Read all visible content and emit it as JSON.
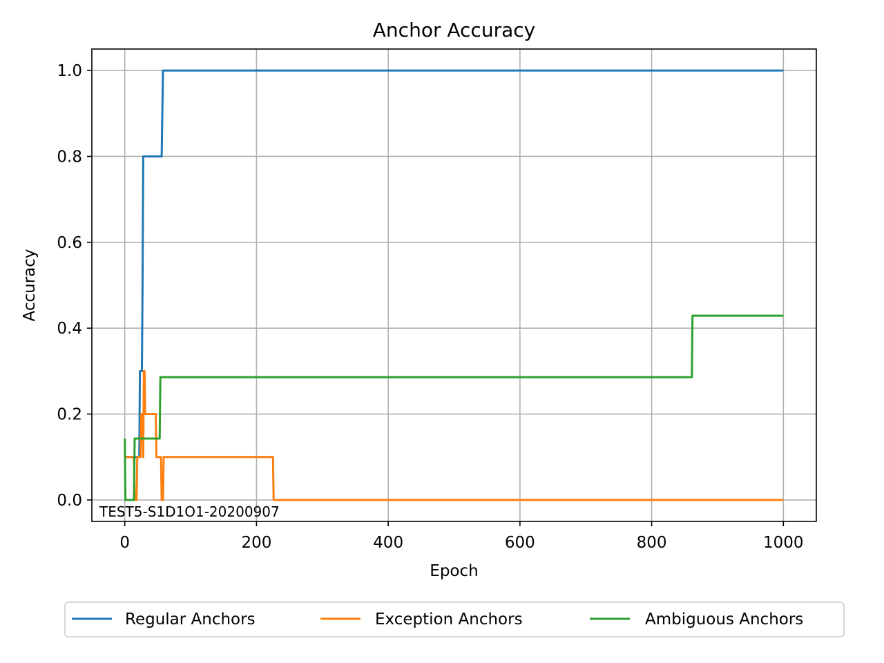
{
  "chart_data": {
    "type": "line",
    "title": "Anchor Accuracy",
    "xlabel": "Epoch",
    "ylabel": "Accuracy",
    "xlim": [
      -50,
      1050
    ],
    "ylim": [
      -0.05,
      1.05
    ],
    "xticks": [
      0,
      200,
      400,
      600,
      800,
      1000
    ],
    "yticks": [
      0.0,
      0.2,
      0.4,
      0.6,
      0.8,
      1.0
    ],
    "xtick_labels": [
      "0",
      "200",
      "400",
      "600",
      "800",
      "1000"
    ],
    "ytick_labels": [
      "0.0",
      "0.2",
      "0.4",
      "0.6",
      "0.8",
      "1.0"
    ],
    "grid": true,
    "legend_position": "bottom-center",
    "annotation": "TEST5-S1D1O1-20200907",
    "series": [
      {
        "name": "Regular Anchors",
        "color": "#1f77b4",
        "points": [
          [
            0,
            0.1
          ],
          [
            22,
            0.1
          ],
          [
            23,
            0.3
          ],
          [
            26,
            0.3
          ],
          [
            27,
            0.5
          ],
          [
            28,
            0.8
          ],
          [
            56,
            0.8
          ],
          [
            58,
            1.0
          ],
          [
            1000,
            1.0
          ]
        ]
      },
      {
        "name": "Exception Anchors",
        "color": "#ff7f0e",
        "points": [
          [
            0,
            0.1
          ],
          [
            14,
            0.1
          ],
          [
            15,
            0.0
          ],
          [
            18,
            0.0
          ],
          [
            19,
            0.1
          ],
          [
            24,
            0.1
          ],
          [
            25,
            0.2
          ],
          [
            27,
            0.2
          ],
          [
            28,
            0.1
          ],
          [
            29,
            0.3
          ],
          [
            30,
            0.3
          ],
          [
            31,
            0.2
          ],
          [
            47,
            0.2
          ],
          [
            48,
            0.1
          ],
          [
            55,
            0.1
          ],
          [
            56,
            0.0
          ],
          [
            58,
            0.0
          ],
          [
            59,
            0.1
          ],
          [
            225,
            0.1
          ],
          [
            226,
            0.0
          ],
          [
            1000,
            0.0
          ]
        ]
      },
      {
        "name": "Ambiguous Anchors",
        "color": "#2ca02c",
        "points": [
          [
            0,
            0.143
          ],
          [
            1,
            0.0
          ],
          [
            14,
            0.0
          ],
          [
            15,
            0.143
          ],
          [
            53,
            0.143
          ],
          [
            54,
            0.286
          ],
          [
            861,
            0.286
          ],
          [
            862,
            0.429
          ],
          [
            1000,
            0.429
          ]
        ]
      }
    ]
  }
}
